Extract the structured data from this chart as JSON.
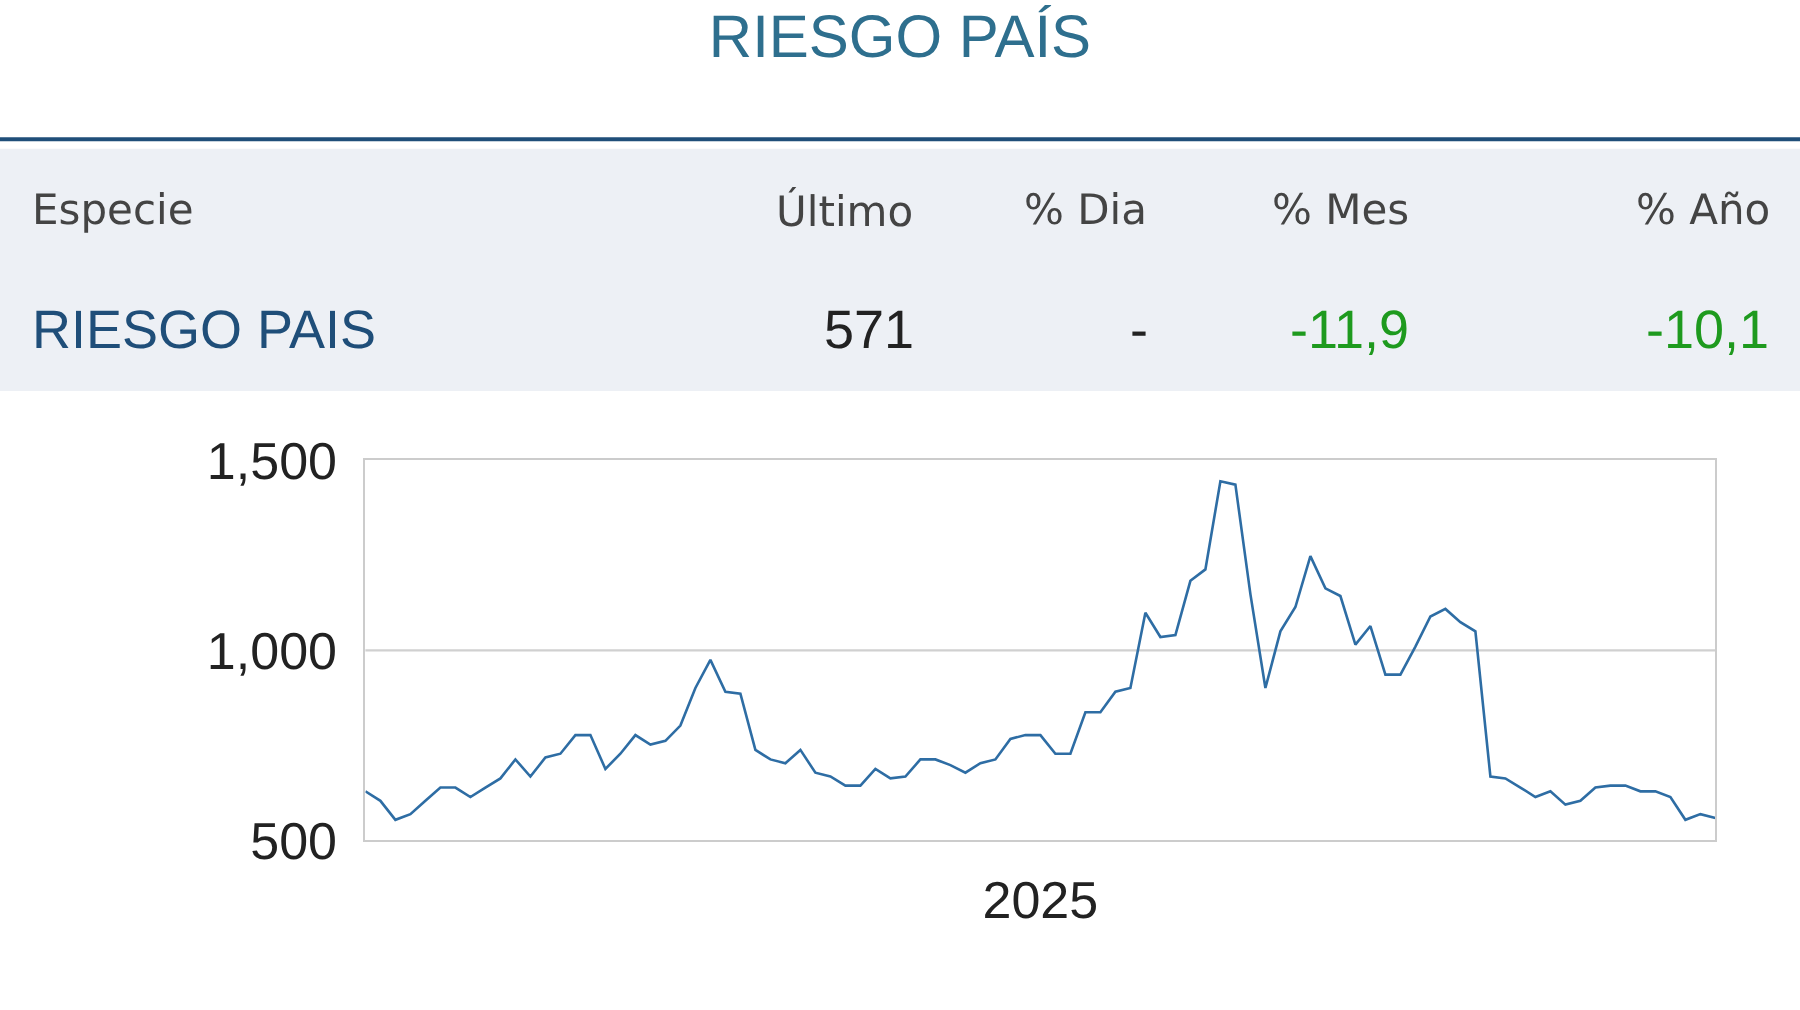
{
  "chart_data": {
    "type": "line",
    "title": "RIESGO PAÍS",
    "xlabel": "2025",
    "annotations": [
      "Especie",
      "Último",
      "% Dia",
      "% Mes",
      "% Año",
      "RIESGO PAIS",
      "571",
      "-",
      "-11,9",
      "-10,1"
    ],
    "categories": [
      null,
      null,
      null,
      null,
      null,
      null,
      null,
      null,
      null,
      null,
      null,
      null,
      null,
      null,
      null,
      null,
      null,
      null,
      null,
      null,
      null,
      null,
      null,
      null,
      null,
      null,
      null,
      null,
      null,
      null,
      null,
      null,
      null,
      null,
      null,
      null,
      null,
      null,
      null,
      null,
      null,
      null,
      null,
      null,
      null,
      null,
      null,
      null,
      null,
      null,
      null,
      null,
      null,
      null,
      null,
      null,
      null,
      null,
      null,
      null,
      null,
      null,
      null,
      null,
      null,
      null,
      null,
      null,
      null,
      null,
      null,
      null,
      null,
      null,
      null,
      null,
      null,
      null,
      null,
      null,
      null,
      null,
      null,
      null,
      null,
      null,
      null,
      null,
      null,
      null,
      null
    ],
    "series": [
      {
        "color": "#2e6da4",
        "values": [
          629,
          604,
          554,
          569,
          604,
          639,
          639,
          614,
          639,
          663,
          713,
          668,
          718,
          728,
          777,
          777,
          688,
          728,
          777,
          752,
          762,
          802,
          901,
          975,
          891,
          886,
          738,
          713,
          703,
          738,
          678,
          668,
          644,
          644,
          688,
          663,
          668,
          713,
          713,
          698,
          678,
          703,
          713,
          767,
          777,
          777,
          728,
          728,
          837,
          837,
          891,
          901,
          1099,
          1035,
          1040,
          1183,
          1213,
          1445,
          1436,
          1148,
          901,
          1050,
          1114,
          1248,
          1163,
          1143,
          1015,
          1064,
          936,
          936,
          1010,
          1089,
          1109,
          1074,
          1050,
          668,
          663,
          639,
          614,
          629,
          594,
          604,
          639,
          644,
          644,
          629,
          629,
          614,
          554,
          569,
          559
        ]
      }
    ],
    "ylim": [
      500,
      1500
    ],
    "yticks": [
      {
        "value": 500,
        "label": "500"
      },
      {
        "value": 1000,
        "label": "1,000"
      },
      {
        "value": 1500,
        "label": "1,500"
      }
    ],
    "ref_lines": [
      {
        "axis": "y",
        "value": 1000,
        "color": "#d0d0d0",
        "line_style": "solid"
      }
    ],
    "marker": "none",
    "line_style": "solid"
  }
}
